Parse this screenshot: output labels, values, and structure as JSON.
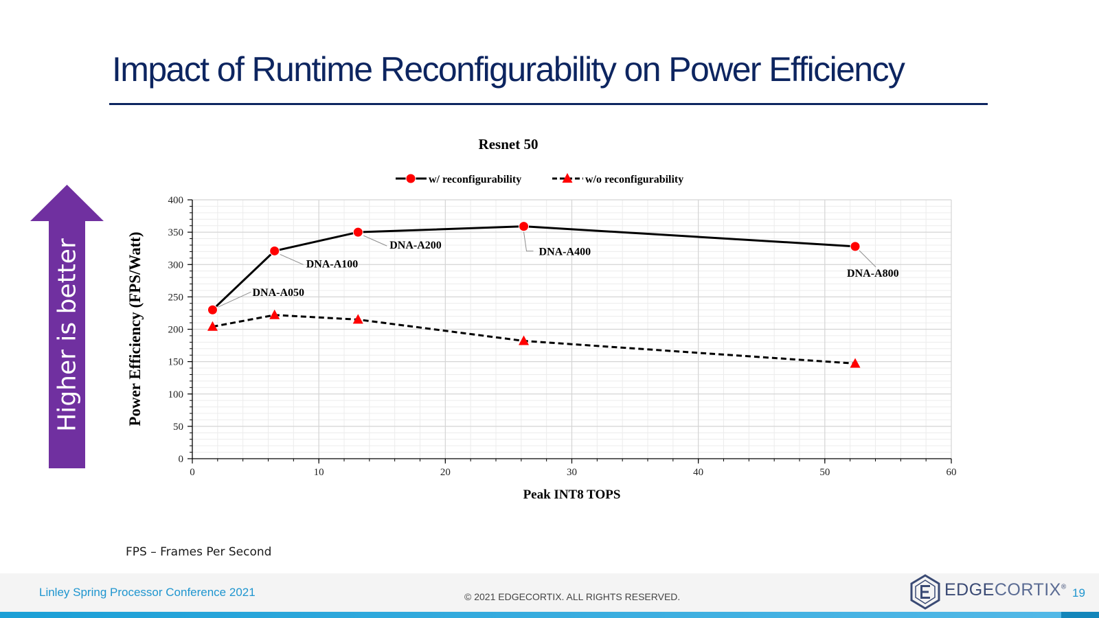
{
  "slide": {
    "title": "Impact of Runtime Reconfigurability on Power Efficiency",
    "arrow_label": "Higher is better",
    "footnote": "FPS – Frames Per Second",
    "conference": "Linley Spring Processor Conference 2021",
    "copyright": "© 2021 EDGECORTIX. ALL RIGHTS RESERVED.",
    "logo": {
      "part1": "EDGE",
      "part2": "CORTIX",
      "mark": "®"
    },
    "page_number": "19",
    "colors": {
      "title": "#0d2560",
      "arrow": "#7030a0",
      "accent": "#1e95cf",
      "marker": "#ff0000"
    }
  },
  "chart_data": {
    "type": "line",
    "title": "Resnet 50",
    "xlabel": "Peak INT8 TOPS",
    "ylabel": "Power Efficiency (FPS/Watt)",
    "xlim": [
      0,
      60
    ],
    "ylim": [
      0,
      400
    ],
    "xticks": [
      "0",
      "10",
      "20",
      "30",
      "40",
      "50",
      "60"
    ],
    "yticks": [
      "0",
      "50",
      "100",
      "150",
      "200",
      "250",
      "300",
      "350",
      "400"
    ],
    "grid": true,
    "legend_position": "top-center",
    "series": [
      {
        "name": "w/ reconfigurability",
        "style": "solid",
        "marker": "circle",
        "x": [
          1.6,
          6.5,
          13.1,
          26.2,
          52.4
        ],
        "y": [
          230,
          321,
          350,
          359,
          328
        ]
      },
      {
        "name": "w/o reconfigurability",
        "style": "dashed",
        "marker": "triangle",
        "x": [
          1.6,
          6.5,
          13.1,
          26.2,
          52.4
        ],
        "y": [
          204,
          222,
          215,
          182,
          147
        ]
      }
    ],
    "annotations": [
      {
        "text": "DNA-A050",
        "x": 1.6,
        "y": 230,
        "placement": "upper-right"
      },
      {
        "text": "DNA-A100",
        "x": 6.5,
        "y": 321,
        "placement": "lower-right"
      },
      {
        "text": "DNA-A200",
        "x": 13.1,
        "y": 350,
        "placement": "lower-right"
      },
      {
        "text": "DNA-A400",
        "x": 26.2,
        "y": 359,
        "placement": "below"
      },
      {
        "text": "DNA-A800",
        "x": 52.4,
        "y": 328,
        "placement": "below"
      }
    ]
  }
}
